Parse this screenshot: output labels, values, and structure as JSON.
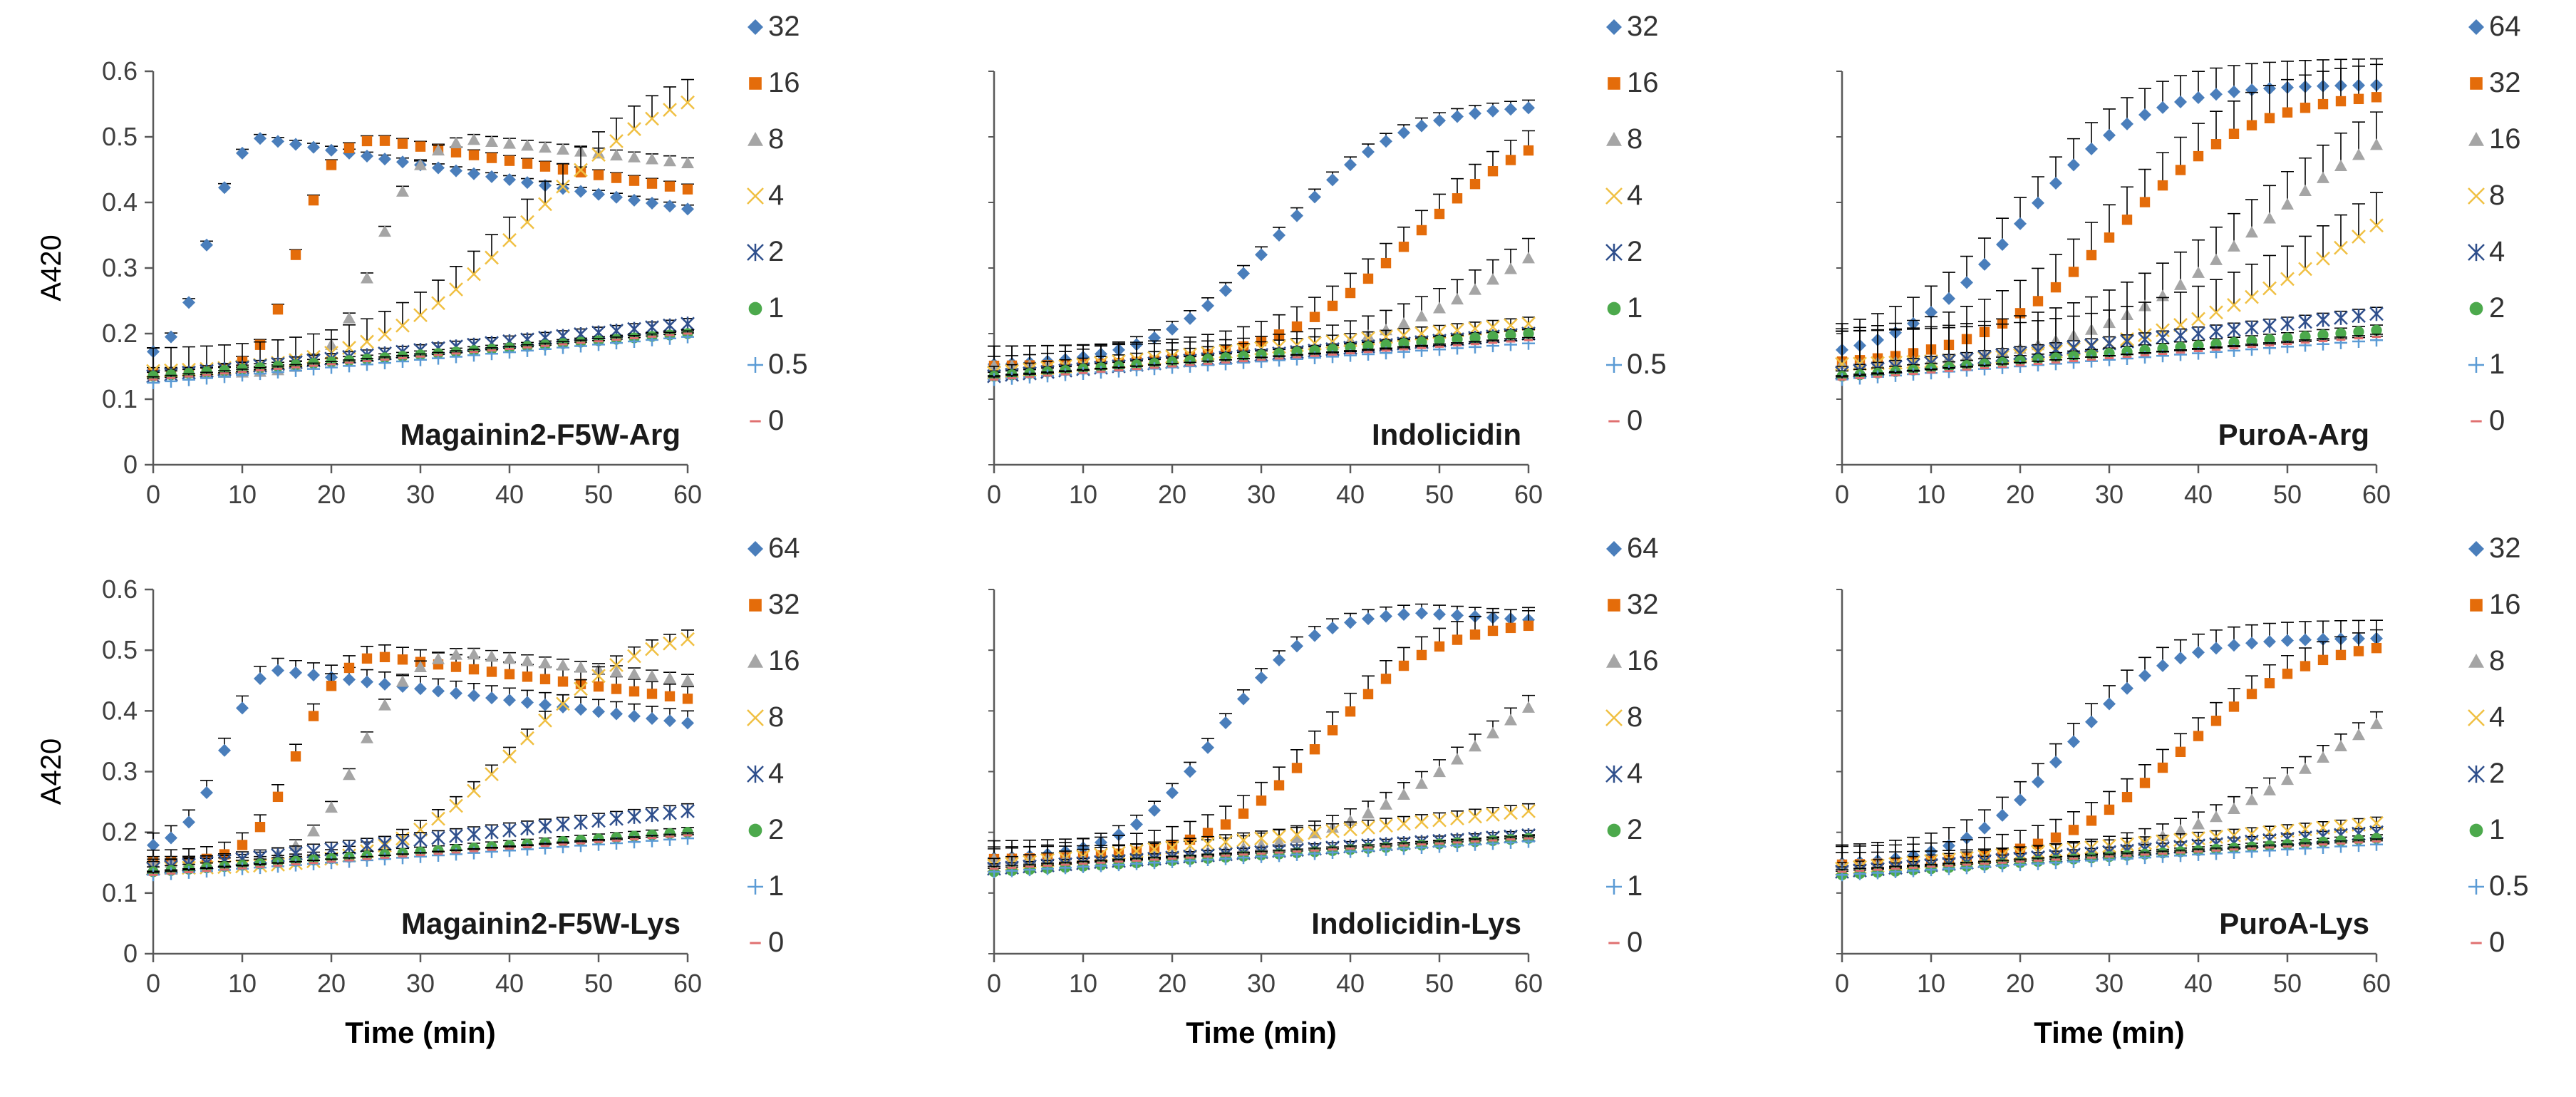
{
  "figure": {
    "series_colors": {
      "s1": "#4A7EBB",
      "s2": "#E46C0A",
      "s3": "#A5A5A5",
      "s4": "#F0C043",
      "s5": "#2F4F8C",
      "s6": "#4CA94C",
      "s7": "#5B9BD5",
      "s8": "#E07070"
    },
    "marker_types": [
      "diamond-marker",
      "square-marker",
      "triangle-marker",
      "x-marker",
      "star-marker",
      "circle-marker",
      "plus-marker",
      "dash-marker"
    ]
  },
  "chart_data": [
    {
      "type": "scatter",
      "title": "Magainin2-F5W-Arg",
      "xlabel": "",
      "ylabel": "A420",
      "xlim": [
        0,
        60
      ],
      "ylim": [
        0,
        0.6
      ],
      "xticks": [
        "0",
        "10",
        "20",
        "30",
        "40",
        "50",
        "60"
      ],
      "yticks": [
        "0",
        "0.1",
        "0.2",
        "0.3",
        "0.4",
        "0.5",
        "0.6"
      ],
      "legend": [
        "32",
        "16",
        "8",
        "4",
        "2",
        "1",
        "0.5",
        "0"
      ],
      "series": [
        {
          "name": "32",
          "kind": "rise_fall",
          "start": 0.16,
          "t_mid": 6,
          "k": 0.55,
          "max": 0.51,
          "t_peak": 12,
          "end": 0.39,
          "err": 0.006
        },
        {
          "name": "16",
          "kind": "rise_fall",
          "start": 0.14,
          "t_mid": 16,
          "k": 0.5,
          "max": 0.5,
          "t_peak": 25,
          "end": 0.42,
          "err": 0.008
        },
        {
          "name": "8",
          "kind": "rise_fall",
          "start": 0.14,
          "t_mid": 25,
          "k": 0.4,
          "max": 0.5,
          "t_peak": 36,
          "end": 0.46,
          "err": 0.008
        },
        {
          "name": "4",
          "kind": "sigmoid",
          "start": 0.14,
          "t_mid": 42,
          "k": 0.12,
          "max": 0.6,
          "err": 0.035
        },
        {
          "name": "2",
          "kind": "linear",
          "start": 0.135,
          "end": 0.215,
          "err": 0.008
        },
        {
          "name": "1",
          "kind": "linear",
          "start": 0.135,
          "end": 0.2,
          "err": 0.006
        },
        {
          "name": "0.5",
          "kind": "linear",
          "start": 0.125,
          "end": 0.195,
          "err": 0.006
        },
        {
          "name": "0",
          "kind": "linear",
          "start": 0.13,
          "end": 0.2,
          "err": 0.004
        }
      ]
    },
    {
      "type": "scatter",
      "title": "Indolicidin",
      "xlabel": "",
      "ylabel": "",
      "xlim": [
        0,
        60
      ],
      "ylim": [
        0,
        0.6
      ],
      "xticks": [
        "0",
        "10",
        "20",
        "30",
        "40",
        "50",
        "60"
      ],
      "yticks": [],
      "legend": [
        "32",
        "16",
        "8",
        "4",
        "2",
        "1",
        "0.5",
        "0"
      ],
      "series": [
        {
          "name": "32",
          "kind": "sigmoid",
          "start": 0.15,
          "t_mid": 32,
          "k": 0.15,
          "max": 0.55,
          "err": 0.012
        },
        {
          "name": "16",
          "kind": "sigmoid",
          "start": 0.15,
          "t_mid": 47,
          "k": 0.13,
          "max": 0.54,
          "err": 0.03
        },
        {
          "name": "8",
          "kind": "sigmoid",
          "start": 0.15,
          "t_mid": 60,
          "k": 0.1,
          "max": 0.48,
          "err": 0.03
        },
        {
          "name": "4",
          "kind": "linear",
          "start": 0.14,
          "end": 0.215,
          "err": 0.01
        },
        {
          "name": "2",
          "kind": "linear",
          "start": 0.135,
          "end": 0.2,
          "err": 0.008
        },
        {
          "name": "1",
          "kind": "linear",
          "start": 0.135,
          "end": 0.2,
          "err": 0.006
        },
        {
          "name": "0.5",
          "kind": "linear",
          "start": 0.13,
          "end": 0.185,
          "err": 0.006
        },
        {
          "name": "0",
          "kind": "linear",
          "start": 0.13,
          "end": 0.19,
          "err": 0.004
        }
      ]
    },
    {
      "type": "scatter",
      "title": "PuroA-Arg",
      "xlabel": "",
      "ylabel": "",
      "xlim": [
        0,
        60
      ],
      "ylim": [
        0,
        0.6
      ],
      "xticks": [
        "0",
        "10",
        "20",
        "30",
        "40",
        "50",
        "60"
      ],
      "yticks": [],
      "legend": [
        "64",
        "32",
        "16",
        "8",
        "4",
        "2",
        "1",
        "0"
      ],
      "series": [
        {
          "name": "64",
          "kind": "sigmoid",
          "start": 0.155,
          "t_mid": 20,
          "k": 0.15,
          "max": 0.58,
          "err": 0.04
        },
        {
          "name": "32",
          "kind": "sigmoid",
          "start": 0.15,
          "t_mid": 31,
          "k": 0.13,
          "max": 0.57,
          "err": 0.05
        },
        {
          "name": "16",
          "kind": "sigmoid",
          "start": 0.15,
          "t_mid": 47,
          "k": 0.1,
          "max": 0.58,
          "err": 0.05
        },
        {
          "name": "8",
          "kind": "sigmoid",
          "start": 0.15,
          "t_mid": 60,
          "k": 0.08,
          "max": 0.58,
          "err": 0.05
        },
        {
          "name": "4",
          "kind": "linear",
          "start": 0.14,
          "end": 0.23,
          "err": 0.01
        },
        {
          "name": "2",
          "kind": "linear",
          "start": 0.135,
          "end": 0.205,
          "err": 0.008
        },
        {
          "name": "1",
          "kind": "linear",
          "start": 0.13,
          "end": 0.19,
          "err": 0.006
        },
        {
          "name": "0",
          "kind": "linear",
          "start": 0.13,
          "end": 0.195,
          "err": 0.004
        }
      ]
    },
    {
      "type": "scatter",
      "title": "Magainin2-F5W-Lys",
      "xlabel": "Time (min)",
      "ylabel": "A420",
      "xlim": [
        0,
        60
      ],
      "ylim": [
        0,
        0.6
      ],
      "xticks": [
        "0",
        "10",
        "20",
        "30",
        "40",
        "50",
        "60"
      ],
      "yticks": [
        "0",
        "0.1",
        "0.2",
        "0.3",
        "0.4",
        "0.5",
        "0.6"
      ],
      "legend": [
        "64",
        "32",
        "16",
        "8",
        "4",
        "2",
        "1",
        "0"
      ],
      "series": [
        {
          "name": "64",
          "kind": "rise_fall",
          "start": 0.17,
          "t_mid": 8,
          "k": 0.45,
          "max": 0.5,
          "t_peak": 13,
          "end": 0.38,
          "err": 0.02
        },
        {
          "name": "32",
          "kind": "rise_fall",
          "start": 0.15,
          "t_mid": 16,
          "k": 0.4,
          "max": 0.5,
          "t_peak": 25,
          "end": 0.42,
          "err": 0.02
        },
        {
          "name": "16",
          "kind": "rise_fall",
          "start": 0.15,
          "t_mid": 23,
          "k": 0.35,
          "max": 0.5,
          "t_peak": 35,
          "end": 0.45,
          "err": 0.01
        },
        {
          "name": "8",
          "kind": "sigmoid",
          "start": 0.14,
          "t_mid": 41,
          "k": 0.15,
          "max": 0.54,
          "err": 0.015
        },
        {
          "name": "4",
          "kind": "linear",
          "start": 0.14,
          "end": 0.235,
          "err": 0.012
        },
        {
          "name": "2",
          "kind": "linear",
          "start": 0.135,
          "end": 0.2,
          "err": 0.008
        },
        {
          "name": "1",
          "kind": "linear",
          "start": 0.13,
          "end": 0.19,
          "err": 0.006
        },
        {
          "name": "0",
          "kind": "linear",
          "start": 0.13,
          "end": 0.195,
          "err": 0.004
        }
      ]
    },
    {
      "type": "scatter",
      "title": "Indolicidin-Lys",
      "xlabel": "Time (min)",
      "ylabel": "",
      "xlim": [
        0,
        60
      ],
      "ylim": [
        0,
        0.6
      ],
      "xticks": [
        "0",
        "10",
        "20",
        "30",
        "40",
        "50",
        "60"
      ],
      "yticks": [],
      "legend": [
        "64",
        "32",
        "16",
        "8",
        "4",
        "2",
        "1",
        "0"
      ],
      "series": [
        {
          "name": "64",
          "kind": "rise_fall",
          "start": 0.155,
          "t_mid": 25,
          "k": 0.2,
          "max": 0.565,
          "t_peak": 48,
          "end": 0.55,
          "err": 0.015
        },
        {
          "name": "32",
          "kind": "sigmoid",
          "start": 0.155,
          "t_mid": 37,
          "k": 0.16,
          "max": 0.55,
          "err": 0.03
        },
        {
          "name": "16",
          "kind": "sigmoid",
          "start": 0.155,
          "t_mid": 55,
          "k": 0.11,
          "max": 0.55,
          "err": 0.02
        },
        {
          "name": "8",
          "kind": "linear",
          "start": 0.145,
          "end": 0.235,
          "err": 0.012
        },
        {
          "name": "4",
          "kind": "linear",
          "start": 0.14,
          "end": 0.195,
          "err": 0.008
        },
        {
          "name": "2",
          "kind": "linear",
          "start": 0.135,
          "end": 0.19,
          "err": 0.006
        },
        {
          "name": "1",
          "kind": "linear",
          "start": 0.135,
          "end": 0.185,
          "err": 0.006
        },
        {
          "name": "0",
          "kind": "linear",
          "start": 0.14,
          "end": 0.19,
          "err": 0.004
        }
      ]
    },
    {
      "type": "scatter",
      "title": "PuroA-Lys",
      "xlabel": "Time (min)",
      "ylabel": "",
      "xlim": [
        0,
        60
      ],
      "ylim": [
        0,
        0.6
      ],
      "xticks": [
        "0",
        "10",
        "20",
        "30",
        "40",
        "50",
        "60"
      ],
      "yticks": [],
      "legend": [
        "32",
        "16",
        "8",
        "4",
        "2",
        "1",
        "0.5",
        "0"
      ],
      "series": [
        {
          "name": "32",
          "kind": "sigmoid",
          "start": 0.145,
          "t_mid": 25,
          "k": 0.18,
          "max": 0.52,
          "err": 0.03
        },
        {
          "name": "16",
          "kind": "sigmoid",
          "start": 0.145,
          "t_mid": 38,
          "k": 0.14,
          "max": 0.52,
          "err": 0.03
        },
        {
          "name": "8",
          "kind": "sigmoid",
          "start": 0.145,
          "t_mid": 55,
          "k": 0.1,
          "max": 0.52,
          "err": 0.02
        },
        {
          "name": "4",
          "kind": "linear",
          "start": 0.14,
          "end": 0.215,
          "err": 0.01
        },
        {
          "name": "2",
          "kind": "linear",
          "start": 0.135,
          "end": 0.2,
          "err": 0.008
        },
        {
          "name": "1",
          "kind": "linear",
          "start": 0.13,
          "end": 0.19,
          "err": 0.006
        },
        {
          "name": "0.5",
          "kind": "linear",
          "start": 0.13,
          "end": 0.18,
          "err": 0.006
        },
        {
          "name": "0",
          "kind": "linear",
          "start": 0.135,
          "end": 0.185,
          "err": 0.004
        }
      ]
    }
  ]
}
